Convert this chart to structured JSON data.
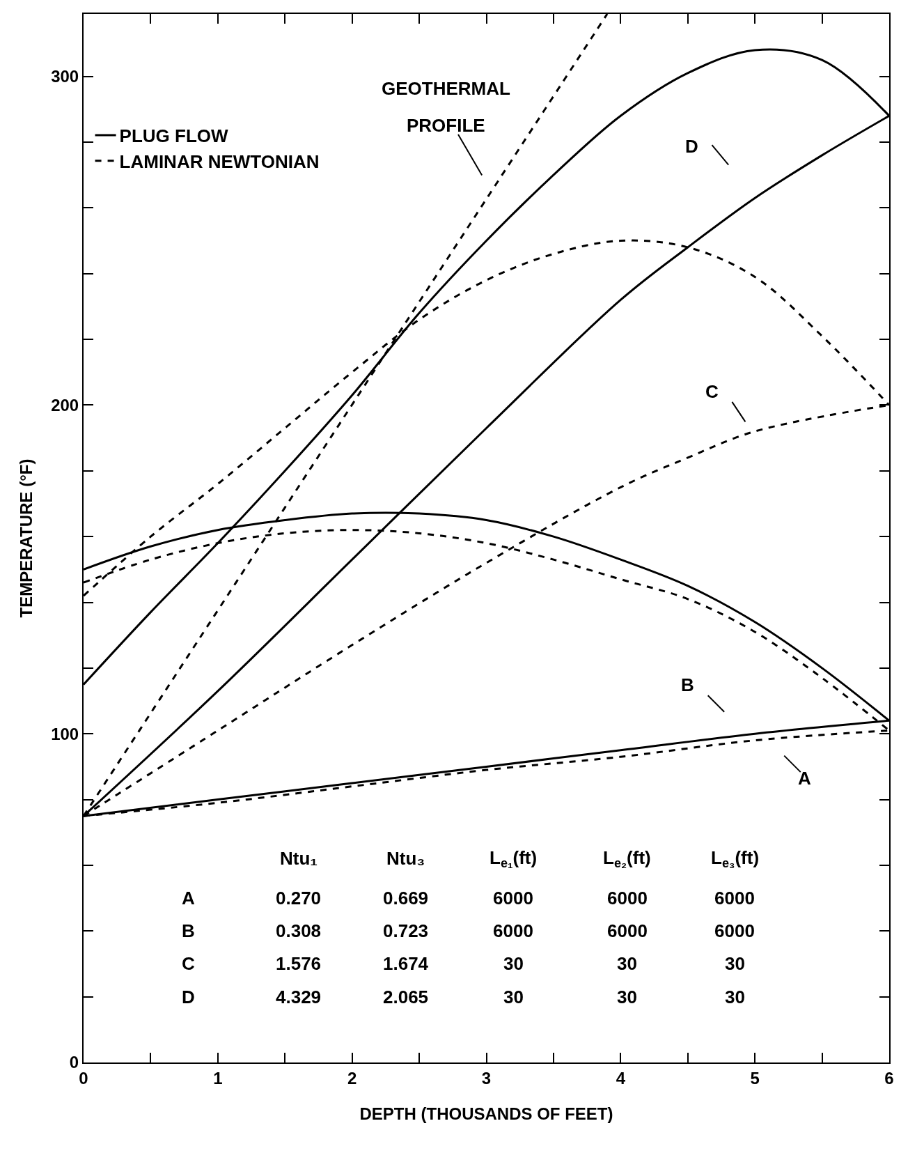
{
  "chart_data": {
    "type": "line",
    "xlabel": "DEPTH (THOUSANDS OF FEET)",
    "ylabel": "TEMPERATURE (°F)",
    "xlim": [
      0,
      6
    ],
    "ylim": [
      0,
      319
    ],
    "xticks": [
      0,
      {
        "value": 0.5,
        "label": null
      },
      1,
      {
        "value": 1.5,
        "label": null
      },
      2,
      {
        "value": 2.5,
        "label": null
      },
      3,
      {
        "value": 3.5,
        "label": null
      },
      4,
      {
        "value": 4.5,
        "label": null
      },
      5,
      {
        "value": 5.5,
        "label": null
      },
      6
    ],
    "yticks": [
      0,
      {
        "value": 20,
        "label": null
      },
      {
        "value": 40,
        "label": null
      },
      {
        "value": 60,
        "label": null
      },
      {
        "value": 80,
        "label": null
      },
      100,
      {
        "value": 120,
        "label": null
      },
      {
        "value": 140,
        "label": null
      },
      {
        "value": 160,
        "label": null
      },
      {
        "value": 180,
        "label": null
      },
      200,
      {
        "value": 220,
        "label": null
      },
      {
        "value": 240,
        "label": null
      },
      {
        "value": 260,
        "label": null
      },
      {
        "value": 280,
        "label": null
      },
      300
    ],
    "legend": "top left",
    "marker": "none",
    "series": [
      {
        "name": "PLUG FLOW",
        "color": "#000000",
        "line_style": "solid",
        "x": [
          0,
          1,
          2,
          3,
          4,
          5,
          6
        ],
        "values": [
          75,
          80,
          85,
          90,
          95,
          100,
          104
        ]
      },
      {
        "name": "LAMINAR NEWTONIAN",
        "color": "#000000",
        "line_style": "dashed",
        "x": [
          0,
          1,
          2,
          3,
          4,
          5,
          6
        ],
        "values": [
          75,
          79,
          84,
          89,
          93,
          98,
          101
        ]
      },
      {
        "color": "#000000",
        "line_style": "solid",
        "x": [
          0,
          0.5,
          1,
          1.5,
          2,
          2.5,
          3,
          3.5,
          4,
          4.5,
          5,
          5.5,
          6
        ],
        "values": [
          150,
          157,
          162,
          165,
          167,
          167,
          165,
          160,
          153,
          145,
          134,
          120,
          104
        ]
      },
      {
        "color": "#000000",
        "line_style": "dashed",
        "x": [
          0,
          0.5,
          1,
          1.5,
          2,
          2.5,
          3,
          3.5,
          4,
          4.5,
          5,
          5.5,
          6
        ],
        "values": [
          146,
          153,
          158,
          161,
          162,
          161,
          158,
          153,
          147,
          141,
          131,
          117,
          101
        ]
      },
      {
        "color": "#000000",
        "line_style": "dashed",
        "x": [
          0,
          1,
          2,
          3,
          4,
          4.5,
          5,
          6
        ],
        "values": [
          75,
          101,
          127,
          152,
          175,
          184,
          192,
          200
        ]
      },
      {
        "color": "#000000",
        "line_style": "dashed",
        "x": [
          0,
          0.5,
          1,
          1.5,
          2,
          2.5,
          3,
          3.5,
          4,
          4.5,
          5,
          5.5,
          6
        ],
        "values": [
          142,
          160,
          176,
          193,
          210,
          226,
          238,
          246,
          250,
          248,
          239,
          221,
          200
        ]
      },
      {
        "color": "#000000",
        "line_style": "solid",
        "x": [
          0,
          1,
          2,
          3,
          4,
          4.5,
          5,
          5.5,
          6
        ],
        "values": [
          75,
          113,
          153,
          193,
          232,
          248,
          263,
          276,
          288
        ]
      },
      {
        "color": "#000000",
        "line_style": "solid",
        "x": [
          0,
          0.5,
          1,
          1.5,
          2,
          2.5,
          3,
          3.5,
          4,
          4.5,
          5,
          5.5,
          6
        ],
        "values": [
          115,
          137,
          158,
          180,
          203,
          228,
          250,
          270,
          288,
          301,
          308,
          305,
          288
        ]
      },
      {
        "color": "#000000",
        "line_style": "dashed",
        "x": [
          0,
          3.9
        ],
        "values": [
          75,
          319
        ]
      }
    ],
    "annotations": [
      "GEOTHERMAL",
      "PROFILE",
      "D",
      "C",
      "B",
      "A",
      "Ntu₁",
      "Ntu₃",
      "L$_{e₁}$(ft)",
      "L$_{e₂}$(ft)",
      "L$_{e₃}$(ft)",
      "A",
      "0.270",
      "0.669",
      "6000",
      "6000",
      "6000",
      "B",
      "0.308",
      "0.723",
      "6000",
      "6000",
      "6000",
      "C",
      "1.576",
      "1.674",
      "30",
      "30",
      "30",
      "D",
      "4.329",
      "2.065",
      "30",
      "30",
      "30"
    ]
  }
}
